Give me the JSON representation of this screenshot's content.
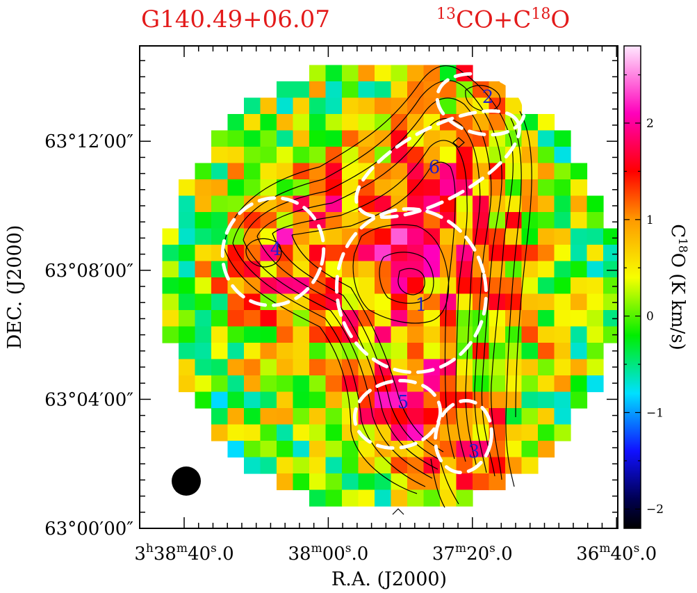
{
  "header": {
    "source_name": "G140.49+06.07",
    "lines_pre1": "13",
    "lines_mid": "CO+C",
    "lines_pre2": "18",
    "lines_post": "O"
  },
  "chart_data": {
    "type": "heatmap",
    "xlabel": "R.A. (J2000)",
    "ylabel": "DEC. (J2000)",
    "colorbar_label": {
      "base1": "C",
      "sup": "18",
      "base2": "O (K km/s)"
    },
    "colorbar_range": [
      -2.2,
      2.8
    ],
    "colorbar_ticks": [
      -2,
      -1,
      0,
      1,
      2
    ],
    "xticks": [
      {
        "h": "3",
        "m": "38",
        "s": "40",
        "f": "0",
        "ra_sec_offset": 0
      },
      {
        "m": "38",
        "s": "00",
        "f": "0",
        "ra_sec_offset": -40
      },
      {
        "m": "37",
        "s": "20",
        "f": "0",
        "ra_sec_offset": -80
      },
      {
        "m": "36",
        "s": "40",
        "f": "0",
        "ra_sec_offset": -120
      }
    ],
    "yticks": [
      {
        "label": "63°00′00″",
        "dec_arcmin": 0
      },
      {
        "label": "63°04′00″",
        "dec_arcmin": 4
      },
      {
        "label": "63°08′00″",
        "dec_arcmin": 8
      },
      {
        "label": "63°12′00″",
        "dec_arcmin": 12
      }
    ],
    "clumps": [
      {
        "label": "1",
        "ra_sec_offset": -60,
        "dec_arcmin": 7.6
      },
      {
        "label": "2",
        "ra_sec_offset": -84,
        "dec_arcmin": 13.3
      },
      {
        "label": "3",
        "ra_sec_offset": -80,
        "dec_arcmin": 2.7
      },
      {
        "label": "4",
        "ra_sec_offset": -21,
        "dec_arcmin": 8.6
      },
      {
        "label": "5",
        "ra_sec_offset": -52,
        "dec_arcmin": 3.9
      },
      {
        "label": "6",
        "ra_sec_offset": -67,
        "dec_arcmin": 11.3
      }
    ],
    "beam": "filled-circle-lower-left",
    "contours": "13CO integrated intensity, black",
    "ellipses": "dashed white, clump boundaries",
    "colormap": "black-blue-cyan-green-yellow-orange-red-magenta-pink"
  }
}
